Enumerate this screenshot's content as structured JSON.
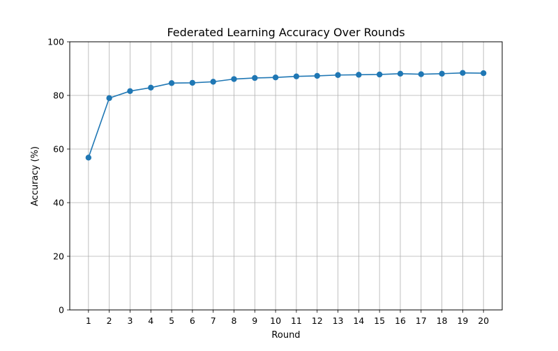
{
  "chart_data": {
    "type": "line",
    "title": "Federated Learning Accuracy Over Rounds",
    "xlabel": "Round",
    "ylabel": "Accuracy (%)",
    "x": [
      1,
      2,
      3,
      4,
      5,
      6,
      7,
      8,
      9,
      10,
      11,
      12,
      13,
      14,
      15,
      16,
      17,
      18,
      19,
      20
    ],
    "series": [
      {
        "values": [
          56.8,
          79.0,
          81.6,
          82.9,
          84.6,
          84.7,
          85.1,
          86.1,
          86.5,
          86.7,
          87.1,
          87.3,
          87.6,
          87.7,
          87.8,
          88.1,
          87.9,
          88.1,
          88.4,
          88.3
        ],
        "color": "#1f77b4",
        "marker": "circle"
      }
    ],
    "xticks": [
      "1",
      "2",
      "3",
      "4",
      "5",
      "6",
      "7",
      "8",
      "9",
      "10",
      "11",
      "12",
      "13",
      "14",
      "15",
      "16",
      "17",
      "18",
      "19",
      "20"
    ],
    "yticks": [
      "0",
      "20",
      "40",
      "60",
      "80",
      "100"
    ],
    "ylim": [
      0,
      100
    ],
    "xlim": [
      0.1,
      20.9
    ],
    "grid": true,
    "legend": false
  }
}
